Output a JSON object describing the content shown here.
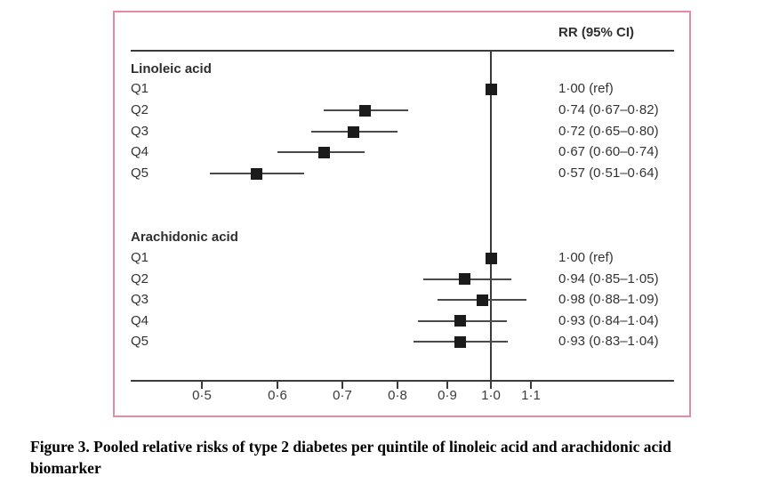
{
  "chart_data": {
    "type": "scatter",
    "subtype": "forest-plot",
    "title": "RR (95% CI)",
    "x_scale": "log",
    "xlim": [
      0.42,
      1.55
    ],
    "x_ticks": [
      0.5,
      0.6,
      0.7,
      0.8,
      0.9,
      1.0,
      1.1
    ],
    "x_tick_labels": [
      "0·5",
      "0·6",
      "0·7",
      "0·8",
      "0·9",
      "1·0",
      "1·1"
    ],
    "reference_line": 1.0,
    "grid": false,
    "series": [
      {
        "name": "Linoleic acid",
        "points": [
          {
            "label": "Q1",
            "rr": 1.0,
            "ci_low": null,
            "ci_high": null,
            "text": "1·00 (ref)"
          },
          {
            "label": "Q2",
            "rr": 0.74,
            "ci_low": 0.67,
            "ci_high": 0.82,
            "text": "0·74 (0·67–0·82)"
          },
          {
            "label": "Q3",
            "rr": 0.72,
            "ci_low": 0.65,
            "ci_high": 0.8,
            "text": "0·72 (0·65–0·80)"
          },
          {
            "label": "Q4",
            "rr": 0.67,
            "ci_low": 0.6,
            "ci_high": 0.74,
            "text": "0·67 (0·60–0·74)"
          },
          {
            "label": "Q5",
            "rr": 0.57,
            "ci_low": 0.51,
            "ci_high": 0.64,
            "text": "0·57 (0·51–0·64)"
          }
        ]
      },
      {
        "name": "Arachidonic acid",
        "points": [
          {
            "label": "Q1",
            "rr": 1.0,
            "ci_low": null,
            "ci_high": null,
            "text": "1·00 (ref)"
          },
          {
            "label": "Q2",
            "rr": 0.94,
            "ci_low": 0.85,
            "ci_high": 1.05,
            "text": "0·94 (0·85–1·05)"
          },
          {
            "label": "Q3",
            "rr": 0.98,
            "ci_low": 0.88,
            "ci_high": 1.09,
            "text": "0·98 (0·88–1·09)"
          },
          {
            "label": "Q4",
            "rr": 0.93,
            "ci_low": 0.84,
            "ci_high": 1.04,
            "text": "0·93 (0·84–1·04)"
          },
          {
            "label": "Q5",
            "rr": 0.93,
            "ci_low": 0.83,
            "ci_high": 1.04,
            "text": "0·93 (0·83–1·04)"
          }
        ]
      }
    ]
  },
  "caption": {
    "line1": "Figure 3. Pooled relative risks of type 2 diabetes per quintile of linoleic acid and arachidonic acid",
    "line2": "biomarker"
  },
  "colors": {
    "panel_border": "#e68ba4",
    "axis_line": "#3b3b3b",
    "ci_line": "#4a4a4a",
    "marker": "#1b1b1b",
    "text": "#333333"
  }
}
